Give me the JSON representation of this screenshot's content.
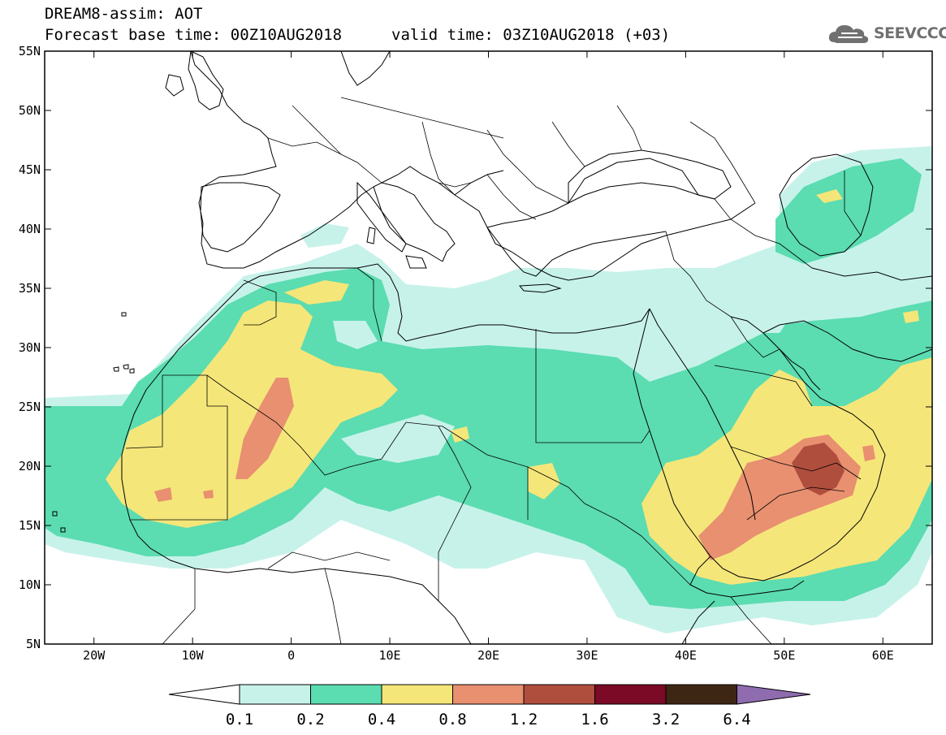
{
  "header": {
    "title": "DREAM8-assim: AOT",
    "base_time": "Forecast base time: 00Z10AUG2018",
    "valid_time": "valid time: 03Z10AUG2018 (+03)"
  },
  "logo": {
    "text": "SEEVCCC",
    "icon": "cloud-icon"
  },
  "map": {
    "lon_range": [
      -25,
      65
    ],
    "lat_range": [
      5,
      55
    ],
    "lon_ticks": [
      {
        "value": -20,
        "label": "20W"
      },
      {
        "value": -10,
        "label": "10W"
      },
      {
        "value": 0,
        "label": "0"
      },
      {
        "value": 10,
        "label": "10E"
      },
      {
        "value": 20,
        "label": "20E"
      },
      {
        "value": 30,
        "label": "30E"
      },
      {
        "value": 40,
        "label": "40E"
      },
      {
        "value": 50,
        "label": "50E"
      },
      {
        "value": 60,
        "label": "60E"
      }
    ],
    "lat_ticks": [
      {
        "value": 55,
        "label": "55N"
      },
      {
        "value": 50,
        "label": "50N"
      },
      {
        "value": 45,
        "label": "45N"
      },
      {
        "value": 40,
        "label": "40N"
      },
      {
        "value": 35,
        "label": "35N"
      },
      {
        "value": 30,
        "label": "30N"
      },
      {
        "value": 25,
        "label": "25N"
      },
      {
        "value": 20,
        "label": "20N"
      },
      {
        "value": 15,
        "label": "15N"
      },
      {
        "value": 10,
        "label": "10N"
      },
      {
        "value": 5,
        "label": "5N"
      }
    ]
  },
  "colorbar": {
    "labels": [
      "0.1",
      "0.2",
      "0.4",
      "0.8",
      "1.2",
      "1.6",
      "3.2",
      "6.4"
    ],
    "colors": [
      "#ffffff",
      "#c7f2ea",
      "#5bdcb1",
      "#f5e67a",
      "#e89070",
      "#b04e3e",
      "#7a0a26",
      "#3e2614",
      "#8f6cb0"
    ]
  }
}
